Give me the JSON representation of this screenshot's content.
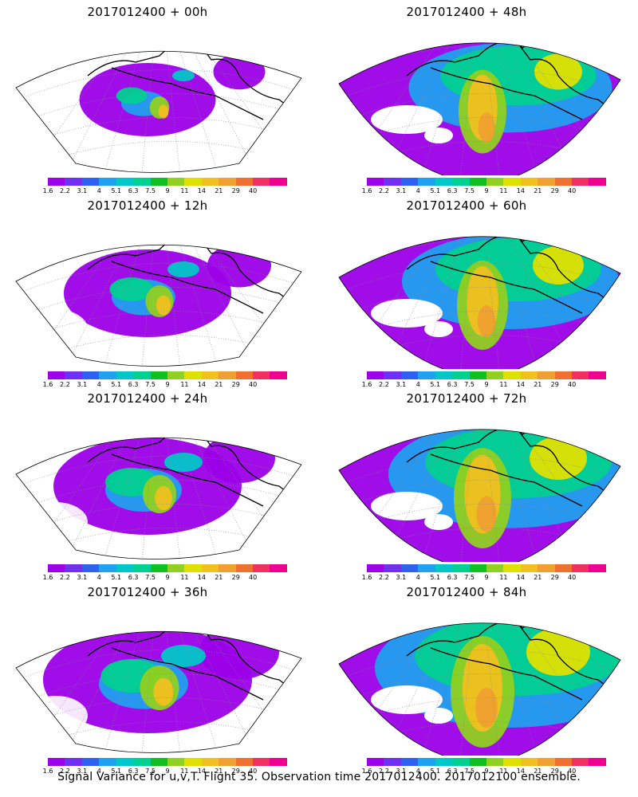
{
  "caption": "Signal Variance for u,v,T. Flight 35. Observation time 2017012400. 2017012100 ensemble.",
  "colorbar": {
    "colors": [
      "#9b00e8",
      "#7030f0",
      "#3060f0",
      "#20a0f0",
      "#00c8c8",
      "#00d090",
      "#10c020",
      "#90d020",
      "#e0e000",
      "#f0c020",
      "#f0a030",
      "#f07030",
      "#f03060",
      "#f00090"
    ],
    "labels": [
      "1.6",
      "2.2",
      "3.1",
      "4",
      "5.1",
      "6.3",
      "7.5",
      "9",
      "11",
      "14",
      "21",
      "29",
      "40"
    ]
  },
  "panels": [
    {
      "title": "2017012400 + 00h",
      "projection": "polar",
      "intensity": 0.35
    },
    {
      "title": "2017012400 + 12h",
      "projection": "polar",
      "intensity": 0.5
    },
    {
      "title": "2017012400 + 24h",
      "projection": "polar",
      "intensity": 0.6
    },
    {
      "title": "2017012400 + 36h",
      "projection": "polar",
      "intensity": 0.7
    },
    {
      "title": "2017012400 + 48h",
      "projection": "fan",
      "intensity": 0.75
    },
    {
      "title": "2017012400 + 60h",
      "projection": "fan",
      "intensity": 0.8
    },
    {
      "title": "2017012400 + 72h",
      "projection": "fan",
      "intensity": 0.9
    },
    {
      "title": "2017012400 + 84h",
      "projection": "fan",
      "intensity": 1.0
    }
  ]
}
